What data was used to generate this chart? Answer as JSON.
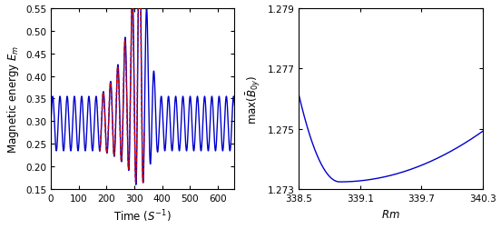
{
  "left_xlim": [
    0,
    660
  ],
  "left_ylim": [
    0.15,
    0.55
  ],
  "left_yticks": [
    0.15,
    0.2,
    0.25,
    0.3,
    0.35,
    0.4,
    0.45,
    0.5,
    0.55
  ],
  "left_xticks": [
    0,
    100,
    200,
    300,
    400,
    500,
    600
  ],
  "left_xlabel": "Time $(S^{-1})$",
  "left_ylabel": "Magnetic energy $E_m$",
  "right_xlim": [
    338.5,
    340.3
  ],
  "right_ylim": [
    1.273,
    1.279
  ],
  "right_yticks": [
    1.273,
    1.275,
    1.277,
    1.279
  ],
  "right_xticks": [
    338.5,
    339.1,
    339.7,
    340.3
  ],
  "right_xlabel": "$Rm$",
  "right_ylabel": "max$(\\bar{B}_{0y})$",
  "blue_color": "#0000cc",
  "red_color": "#cc0000",
  "lw_blue": 1.0,
  "lw_red": 0.9,
  "figsize": [
    5.52,
    2.53
  ],
  "dpi": 100
}
